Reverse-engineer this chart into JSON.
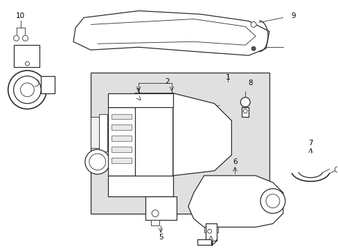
{
  "bg_color": "#ffffff",
  "line_color": "#2a2a2a",
  "gray_fill": "#e0e0e0",
  "white_fill": "#ffffff",
  "label_fs": 7.5,
  "lw_thin": 0.6,
  "lw_med": 0.9,
  "lw_thick": 1.2
}
